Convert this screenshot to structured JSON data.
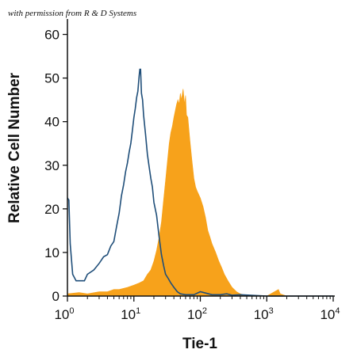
{
  "credit": "with permission from R & D Systems",
  "chart_data": {
    "type": "area",
    "xlabel": "Tie-1",
    "ylabel": "Relative Cell Number",
    "xscale": "log",
    "xlim": [
      1,
      10000
    ],
    "ylim": [
      0,
      63
    ],
    "x_ticks": [
      {
        "base": "10",
        "exp": "0",
        "value": 1
      },
      {
        "base": "10",
        "exp": "1",
        "value": 10
      },
      {
        "base": "10",
        "exp": "2",
        "value": 100
      },
      {
        "base": "10",
        "exp": "3",
        "value": 1000
      },
      {
        "base": "10",
        "exp": "4",
        "value": 10000
      }
    ],
    "y_ticks": [
      0,
      10,
      20,
      30,
      40,
      50,
      60
    ],
    "grid": false,
    "colors": {
      "filled": "#f7a21b",
      "outline": "#1f4e79",
      "axis": "#111111"
    },
    "series": [
      {
        "style": "outline",
        "x": [
          1.0,
          1.05,
          1.1,
          1.2,
          1.35,
          1.5,
          1.8,
          2.0,
          2.5,
          3.0,
          3.5,
          4.0,
          4.5,
          5.0,
          5.5,
          6.0,
          6.5,
          7.0,
          7.5,
          8.0,
          8.5,
          9.0,
          9.5,
          10.0,
          10.5,
          11.0,
          11.5,
          12.0,
          12.3,
          12.6,
          13.0,
          13.5,
          14.0,
          15.0,
          16.0,
          17.0,
          18.0,
          19.0,
          20.0,
          22.0,
          24.0,
          26.0,
          28.0,
          30.0,
          33.0,
          36.0,
          40.0,
          45.0,
          50.0,
          60.0,
          70.0,
          80.0,
          100.0,
          150.0,
          200.0,
          250.0,
          300.0,
          400.0,
          1000.0,
          10000.0
        ],
        "y": [
          22.5,
          22.0,
          12.0,
          5.0,
          3.5,
          3.5,
          3.5,
          5.0,
          6.0,
          7.5,
          9.0,
          9.5,
          11.5,
          12.5,
          16.0,
          19.0,
          23.0,
          25.5,
          28.5,
          30.5,
          33.0,
          35.0,
          38.0,
          41.0,
          43.0,
          45.5,
          47.0,
          50.5,
          52.0,
          52.0,
          46.5,
          45.0,
          41.5,
          37.0,
          32.5,
          29.5,
          27.0,
          25.0,
          21.5,
          18.5,
          13.5,
          9.5,
          7.0,
          5.0,
          4.0,
          3.0,
          2.0,
          1.0,
          0.5,
          0.3,
          0.3,
          0.3,
          1.0,
          0.3,
          0.3,
          0.5,
          0.2,
          0.3,
          0.0,
          0.0
        ]
      },
      {
        "style": "filled",
        "x": [
          1.0,
          1.5,
          2.0,
          3.0,
          4.0,
          5.0,
          6.0,
          8.0,
          10.0,
          12.0,
          14.0,
          16.0,
          18.0,
          20.0,
          22.0,
          24.0,
          26.0,
          28.0,
          30.0,
          32.0,
          34.0,
          36.0,
          38.0,
          40.0,
          42.0,
          44.0,
          46.0,
          48.0,
          50.0,
          52.0,
          55.0,
          58.0,
          60.0,
          62.0,
          65.0,
          68.0,
          70.0,
          75.0,
          80.0,
          85.0,
          90.0,
          100.0,
          110.0,
          120.0,
          130.0,
          140.0,
          150.0,
          170.0,
          190.0,
          210.0,
          230.0,
          260.0,
          300.0,
          350.0,
          400.0,
          500.0,
          700.0,
          1000.0,
          1500.0,
          1600.0,
          2000.0,
          10000.0
        ],
        "y": [
          0.5,
          0.8,
          0.5,
          1.0,
          1.0,
          1.5,
          1.5,
          2.0,
          2.5,
          3.0,
          3.5,
          5.0,
          6.0,
          8.0,
          10.5,
          13.5,
          17.0,
          22.0,
          26.5,
          31.0,
          35.0,
          37.5,
          39.0,
          41.0,
          42.5,
          44.0,
          45.0,
          44.0,
          46.5,
          45.0,
          47.5,
          44.0,
          46.0,
          41.5,
          41.0,
          37.5,
          35.5,
          31.0,
          27.0,
          25.0,
          24.0,
          22.5,
          20.5,
          18.0,
          15.0,
          13.5,
          12.0,
          10.0,
          8.0,
          6.5,
          5.0,
          3.5,
          2.0,
          1.0,
          0.5,
          0.0,
          0.0,
          0.0,
          1.5,
          0.5,
          0.0,
          0.0
        ]
      }
    ]
  }
}
